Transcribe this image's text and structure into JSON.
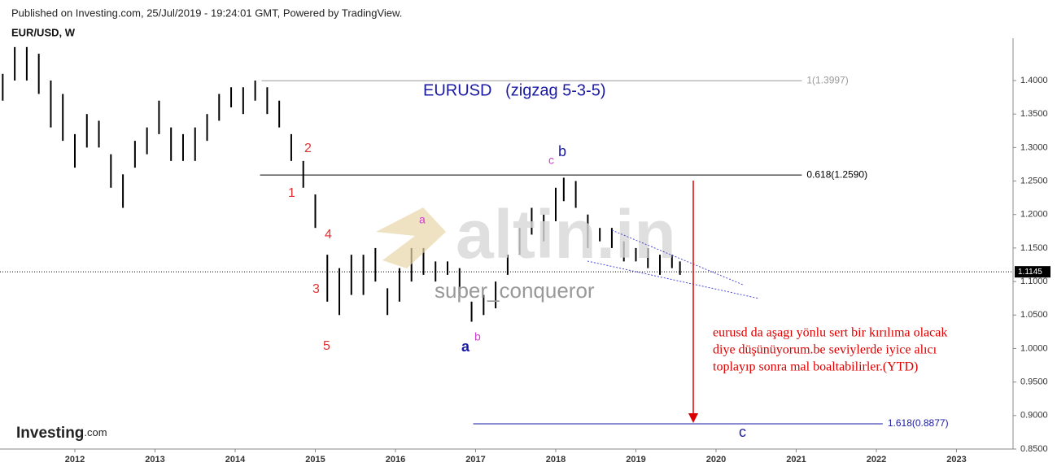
{
  "header": {
    "published": "Published on Investing.com, 25/Jul/2019 - 19:24:01 GMT, Powered by TradingView.",
    "symbol": "EUR/USD, W"
  },
  "chart_data": {
    "type": "ohlc",
    "title": "EURUSD   (zigzag 5-3-5)",
    "color": "#000000",
    "x": [
      2011.1,
      2011.25,
      2011.4,
      2011.55,
      2011.7,
      2011.85,
      2012.0,
      2012.15,
      2012.3,
      2012.45,
      2012.6,
      2012.75,
      2012.9,
      2013.05,
      2013.2,
      2013.35,
      2013.5,
      2013.65,
      2013.8,
      2013.95,
      2014.1,
      2014.25,
      2014.4,
      2014.55,
      2014.7,
      2014.85,
      2015.0,
      2015.15,
      2015.3,
      2015.45,
      2015.6,
      2015.75,
      2015.9,
      2016.05,
      2016.2,
      2016.35,
      2016.5,
      2016.65,
      2016.8,
      2016.95,
      2017.1,
      2017.25,
      2017.4,
      2017.55,
      2017.7,
      2017.85,
      2018.0,
      2018.1,
      2018.25,
      2018.4,
      2018.55,
      2018.7,
      2018.85,
      2019.0,
      2019.15,
      2019.3,
      2019.45,
      2019.55
    ],
    "low": [
      1.37,
      1.4,
      1.4,
      1.38,
      1.33,
      1.31,
      1.27,
      1.3,
      1.3,
      1.24,
      1.21,
      1.27,
      1.29,
      1.32,
      1.28,
      1.28,
      1.28,
      1.31,
      1.34,
      1.36,
      1.35,
      1.37,
      1.35,
      1.33,
      1.28,
      1.24,
      1.18,
      1.07,
      1.05,
      1.08,
      1.08,
      1.1,
      1.05,
      1.07,
      1.1,
      1.11,
      1.1,
      1.11,
      1.08,
      1.04,
      1.05,
      1.06,
      1.11,
      1.14,
      1.17,
      1.16,
      1.19,
      1.22,
      1.21,
      1.15,
      1.16,
      1.15,
      1.13,
      1.13,
      1.12,
      1.11,
      1.12,
      1.11
    ],
    "high": [
      1.41,
      1.45,
      1.45,
      1.44,
      1.4,
      1.38,
      1.32,
      1.35,
      1.34,
      1.29,
      1.26,
      1.31,
      1.33,
      1.37,
      1.33,
      1.32,
      1.33,
      1.35,
      1.38,
      1.39,
      1.39,
      1.4,
      1.39,
      1.37,
      1.32,
      1.28,
      1.23,
      1.14,
      1.12,
      1.14,
      1.14,
      1.15,
      1.09,
      1.12,
      1.15,
      1.15,
      1.13,
      1.13,
      1.12,
      1.07,
      1.08,
      1.1,
      1.14,
      1.18,
      1.21,
      1.2,
      1.24,
      1.255,
      1.25,
      1.2,
      1.18,
      1.18,
      1.16,
      1.15,
      1.15,
      1.14,
      1.14,
      1.13
    ],
    "xlim": [
      2011.066,
      2023.706
    ],
    "xticks": [
      2012,
      2013,
      2014,
      2015,
      2016,
      2017,
      2018,
      2019,
      2020,
      2021,
      2022,
      2023
    ],
    "ylim": [
      0.85,
      1.451
    ],
    "yticks": [
      {
        "value": 0.85,
        "label": "0.8500"
      },
      {
        "value": 0.9,
        "label": "0.9000"
      },
      {
        "value": 0.95,
        "label": "0.9500"
      },
      {
        "value": 1.0,
        "label": "1.0000"
      },
      {
        "value": 1.05,
        "label": "1.0500"
      },
      {
        "value": 1.1,
        "label": "1.1000"
      },
      {
        "value": 1.15,
        "label": "1.1500"
      },
      {
        "value": 1.2,
        "label": "1.2000"
      },
      {
        "value": 1.25,
        "label": "1.2500"
      },
      {
        "value": 1.3,
        "label": "1.3000"
      },
      {
        "value": 1.35,
        "label": "1.3500"
      },
      {
        "value": 1.4,
        "label": "1.4000"
      }
    ],
    "levels": [
      {
        "value": 1.3997,
        "label": "1(1.3997)",
        "x": [
          2014.33,
          2021.07
        ],
        "color": "#999999"
      },
      {
        "value": 1.259,
        "label": "0.618(1.2590)",
        "x": [
          2014.31,
          2021.07
        ],
        "color": "#000000"
      },
      {
        "value": 0.8877,
        "label": "1.618(0.8877)",
        "x": [
          2016.97,
          2022.08
        ],
        "color": "#1a1aa6"
      }
    ],
    "current": {
      "value": 1.1145,
      "label": "1.1145"
    },
    "waves": [
      "1",
      "2",
      "3",
      "4",
      "5",
      "a",
      "b",
      "a",
      "b",
      "c",
      "c"
    ],
    "watermark": [
      "altin.in",
      "super_conqueror"
    ],
    "note": [
      "eurusd  da aşagı yönlu sert bir kırılıma olacak",
      "diye düşünüyorum.be seviylerde iyice alıcı",
      "toplayıp sonra mal boaltabilirler.(YTD)"
    ],
    "logo": [
      "Investing",
      ".com"
    ]
  }
}
